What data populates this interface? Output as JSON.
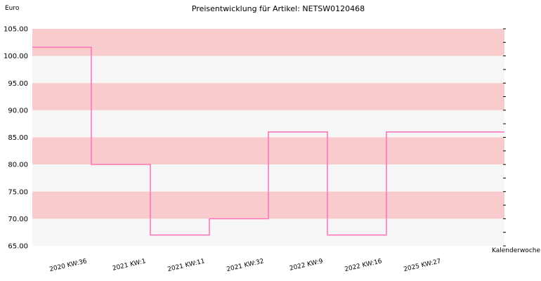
{
  "chart_data": {
    "type": "line",
    "step": true,
    "title": "Preisentwicklung für Artikel: NETSW0120468",
    "ylabel": "Euro",
    "xlabel": "Kalenderwoche",
    "ylim": [
      65,
      105
    ],
    "yticks": [
      "65.00",
      "70.00",
      "75.00",
      "80.00",
      "85.00",
      "90.00",
      "95.00",
      "100.00",
      "105.00"
    ],
    "categories": [
      "2020 KW:36",
      "2021 KW:1",
      "2021 KW:11",
      "2021 KW:32",
      "2022 KW:9",
      "2022 KW:16",
      "2025 KW:27"
    ],
    "series": [
      {
        "values": [
          101.6,
          80.0,
          67.0,
          70.0,
          86.0,
          67.0,
          86.0
        ]
      }
    ],
    "band_colors": [
      "#f8cccc",
      "#f6f6f6"
    ],
    "line_color": "#ff77bb",
    "grid": true
  }
}
